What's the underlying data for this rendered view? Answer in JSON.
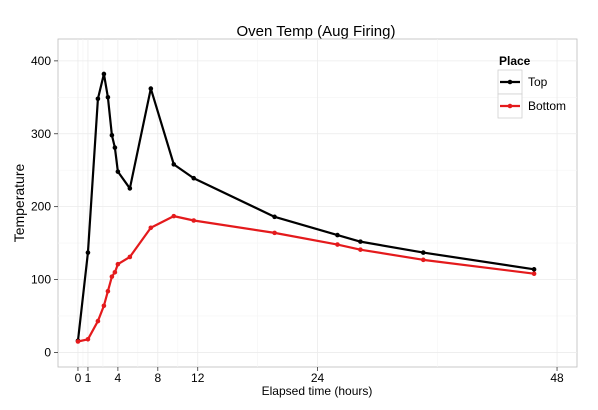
{
  "chart_data": {
    "type": "line",
    "title": "Oven Temp (Aug Firing)",
    "xlabel": "Elapsed time (hours)",
    "ylabel": "Temperature",
    "xlim": [
      -2,
      50
    ],
    "ylim": [
      -20,
      430
    ],
    "x_ticks": [
      0,
      1,
      4,
      8,
      12,
      24,
      48
    ],
    "y_ticks": [
      0,
      100,
      200,
      300,
      400
    ],
    "grid": true,
    "legend": {
      "title": "Place",
      "position": "top-right"
    },
    "series": [
      {
        "name": "Top",
        "color": "#000000",
        "x": [
          0,
          1,
          2,
          2.6,
          3,
          3.4,
          3.7,
          4,
          5.2,
          7.3,
          9.6,
          11.6,
          19.7,
          26,
          28.3,
          34.6,
          45.7
        ],
        "y": [
          16,
          137,
          348,
          382,
          350,
          298,
          281,
          248,
          225,
          362,
          258,
          239,
          186,
          161,
          152,
          137,
          114
        ]
      },
      {
        "name": "Bottom",
        "color": "#e41a1c",
        "x": [
          0,
          1,
          2,
          2.6,
          3,
          3.4,
          3.7,
          4,
          5.2,
          7.3,
          9.6,
          11.6,
          19.7,
          26,
          28.3,
          34.6,
          45.7
        ],
        "y": [
          15,
          18,
          43,
          64,
          84,
          104,
          110,
          121,
          131,
          171,
          187,
          181,
          164,
          148,
          141,
          127,
          108
        ]
      }
    ]
  }
}
